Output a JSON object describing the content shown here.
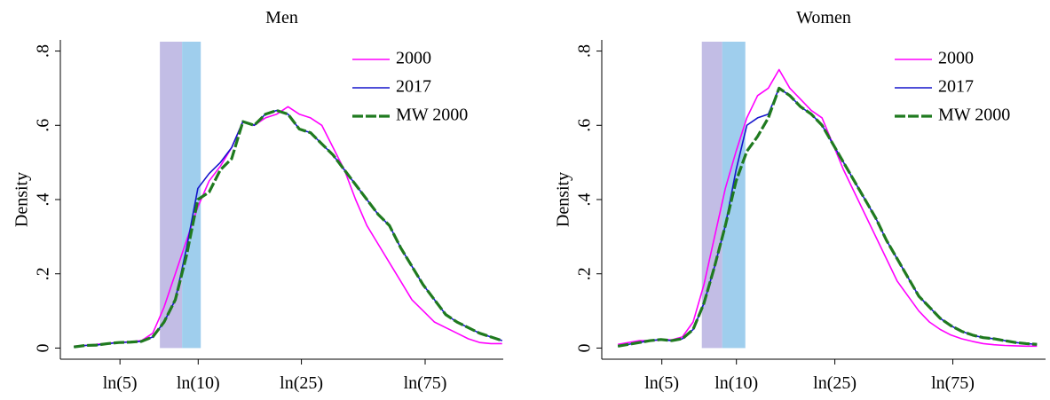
{
  "chart_data": [
    {
      "type": "line",
      "title": "Men",
      "ylabel": "Density",
      "legend": "top-right",
      "xlim": [
        1.08,
        5.01
      ],
      "ylim": [
        -0.03,
        0.83
      ],
      "xticks": [
        {
          "value": 1.609,
          "label": "ln(5)"
        },
        {
          "value": 2.303,
          "label": "ln(10)"
        },
        {
          "value": 3.219,
          "label": "ln(25)"
        },
        {
          "value": 4.317,
          "label": "ln(75)"
        }
      ],
      "yticks": [
        0,
        {
          "value": 0.2,
          "label": ".2"
        },
        {
          "value": 0.4,
          "label": ".4"
        },
        {
          "value": 0.6,
          "label": ".6"
        },
        {
          "value": 0.8,
          "label": ".8"
        }
      ],
      "shaded_regions": [
        {
          "x0": 1.963,
          "x1": 2.16,
          "color": "#b7b1e0"
        },
        {
          "x0": 2.16,
          "x1": 2.326,
          "color": "#8ec5ea"
        }
      ],
      "x": [
        1.2,
        1.3,
        1.4,
        1.5,
        1.6,
        1.7,
        1.8,
        1.9,
        2.0,
        2.1,
        2.2,
        2.3,
        2.4,
        2.5,
        2.6,
        2.7,
        2.8,
        2.9,
        3.0,
        3.1,
        3.2,
        3.3,
        3.4,
        3.5,
        3.6,
        3.7,
        3.8,
        3.9,
        4.0,
        4.1,
        4.2,
        4.3,
        4.4,
        4.5,
        4.6,
        4.7,
        4.8,
        4.9,
        5.0
      ],
      "series": [
        {
          "name": "2000",
          "color": "#ff00ff",
          "width": 1.6,
          "dashed": false,
          "values": [
            0.005,
            0.007,
            0.01,
            0.013,
            0.015,
            0.017,
            0.02,
            0.04,
            0.11,
            0.2,
            0.29,
            0.38,
            0.45,
            0.49,
            0.54,
            0.61,
            0.6,
            0.62,
            0.63,
            0.65,
            0.63,
            0.62,
            0.6,
            0.54,
            0.48,
            0.4,
            0.33,
            0.28,
            0.23,
            0.18,
            0.13,
            0.1,
            0.07,
            0.055,
            0.04,
            0.025,
            0.015,
            0.012,
            0.012
          ]
        },
        {
          "name": "2017",
          "color": "#1515cc",
          "width": 1.6,
          "dashed": false,
          "values": [
            0.003,
            0.007,
            0.008,
            0.012,
            0.015,
            0.016,
            0.018,
            0.03,
            0.07,
            0.13,
            0.27,
            0.43,
            0.47,
            0.5,
            0.54,
            0.61,
            0.6,
            0.63,
            0.64,
            0.63,
            0.59,
            0.58,
            0.55,
            0.52,
            0.48,
            0.44,
            0.4,
            0.36,
            0.33,
            0.27,
            0.22,
            0.17,
            0.13,
            0.09,
            0.07,
            0.055,
            0.04,
            0.03,
            0.02
          ]
        },
        {
          "name": "MW 2000",
          "color": "#1f7a1f",
          "width": 3.2,
          "dashed": true,
          "values": [
            0.003,
            0.007,
            0.008,
            0.012,
            0.015,
            0.016,
            0.018,
            0.03,
            0.07,
            0.13,
            0.25,
            0.4,
            0.42,
            0.48,
            0.51,
            0.61,
            0.6,
            0.63,
            0.64,
            0.63,
            0.59,
            0.58,
            0.55,
            0.52,
            0.48,
            0.44,
            0.4,
            0.36,
            0.33,
            0.27,
            0.22,
            0.17,
            0.13,
            0.09,
            0.07,
            0.055,
            0.04,
            0.03,
            0.02
          ]
        }
      ]
    },
    {
      "type": "line",
      "title": "Women",
      "ylabel": "Density",
      "legend": "top-right",
      "xlim": [
        1.05,
        5.18
      ],
      "ylim": [
        -0.03,
        0.83
      ],
      "xticks": [
        {
          "value": 1.609,
          "label": "ln(5)"
        },
        {
          "value": 2.303,
          "label": "ln(10)"
        },
        {
          "value": 3.219,
          "label": "ln(25)"
        },
        {
          "value": 4.317,
          "label": "ln(75)"
        }
      ],
      "yticks": [
        0,
        {
          "value": 0.2,
          "label": ".2"
        },
        {
          "value": 0.4,
          "label": ".4"
        },
        {
          "value": 0.6,
          "label": ".6"
        },
        {
          "value": 0.8,
          "label": ".8"
        }
      ],
      "shaded_regions": [
        {
          "x0": 1.981,
          "x1": 2.171,
          "color": "#b7b1e0"
        },
        {
          "x0": 2.171,
          "x1": 2.386,
          "color": "#8ec5ea"
        }
      ],
      "x": [
        1.2,
        1.3,
        1.4,
        1.5,
        1.6,
        1.7,
        1.8,
        1.9,
        2.0,
        2.1,
        2.2,
        2.3,
        2.4,
        2.5,
        2.6,
        2.7,
        2.8,
        2.9,
        3.0,
        3.1,
        3.2,
        3.3,
        3.4,
        3.5,
        3.6,
        3.7,
        3.8,
        3.9,
        4.0,
        4.1,
        4.2,
        4.3,
        4.4,
        4.5,
        4.6,
        4.7,
        4.8,
        4.9,
        5.0,
        5.1
      ],
      "series": [
        {
          "name": "2000",
          "color": "#ff00ff",
          "width": 1.6,
          "dashed": false,
          "values": [
            0.01,
            0.015,
            0.02,
            0.02,
            0.022,
            0.022,
            0.03,
            0.07,
            0.17,
            0.3,
            0.43,
            0.53,
            0.62,
            0.68,
            0.7,
            0.75,
            0.7,
            0.67,
            0.64,
            0.62,
            0.55,
            0.48,
            0.42,
            0.36,
            0.3,
            0.24,
            0.18,
            0.14,
            0.1,
            0.07,
            0.05,
            0.035,
            0.025,
            0.018,
            0.012,
            0.009,
            0.007,
            0.006,
            0.005,
            0.005
          ]
        },
        {
          "name": "2017",
          "color": "#1515cc",
          "width": 1.6,
          "dashed": false,
          "values": [
            0.005,
            0.01,
            0.015,
            0.02,
            0.023,
            0.02,
            0.025,
            0.05,
            0.12,
            0.22,
            0.33,
            0.48,
            0.6,
            0.62,
            0.63,
            0.7,
            0.68,
            0.65,
            0.63,
            0.6,
            0.55,
            0.5,
            0.45,
            0.4,
            0.35,
            0.29,
            0.24,
            0.19,
            0.14,
            0.11,
            0.08,
            0.06,
            0.045,
            0.035,
            0.028,
            0.025,
            0.02,
            0.015,
            0.012,
            0.01
          ]
        },
        {
          "name": "MW 2000",
          "color": "#1f7a1f",
          "width": 3.2,
          "dashed": true,
          "values": [
            0.005,
            0.01,
            0.015,
            0.02,
            0.023,
            0.02,
            0.025,
            0.05,
            0.12,
            0.22,
            0.33,
            0.45,
            0.53,
            0.57,
            0.62,
            0.7,
            0.68,
            0.65,
            0.63,
            0.6,
            0.55,
            0.5,
            0.45,
            0.4,
            0.35,
            0.29,
            0.24,
            0.19,
            0.14,
            0.11,
            0.08,
            0.06,
            0.045,
            0.035,
            0.028,
            0.025,
            0.02,
            0.015,
            0.012,
            0.01
          ]
        }
      ]
    }
  ]
}
